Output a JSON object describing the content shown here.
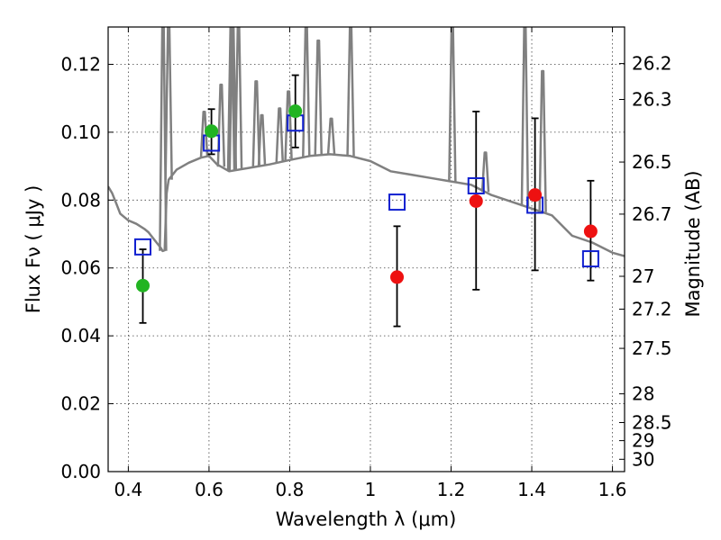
{
  "chart_data": {
    "type": "scatter",
    "title": "",
    "xlabel": "Wavelength  λ (μm)",
    "ylabel": "Flux  Fν  ( μJy )",
    "ylabel_right": "Magnitude (AB)",
    "xlim": [
      0.35,
      1.63
    ],
    "ylim": [
      0.0,
      0.131
    ],
    "grid": true,
    "x_ticks": [
      {
        "value": 0.4,
        "label": "0.4"
      },
      {
        "value": 0.6,
        "label": "0.6"
      },
      {
        "value": 0.8,
        "label": "0.8"
      },
      {
        "value": 1.0,
        "label": "1"
      },
      {
        "value": 1.2,
        "label": "1.2"
      },
      {
        "value": 1.4,
        "label": "1.4"
      },
      {
        "value": 1.6,
        "label": "1.6"
      }
    ],
    "y_ticks": [
      {
        "value": 0.0,
        "label": "0.00"
      },
      {
        "value": 0.02,
        "label": "0.02"
      },
      {
        "value": 0.04,
        "label": "0.04"
      },
      {
        "value": 0.06,
        "label": "0.06"
      },
      {
        "value": 0.08,
        "label": "0.08"
      },
      {
        "value": 0.1,
        "label": "0.10"
      },
      {
        "value": 0.12,
        "label": "0.12"
      }
    ],
    "right_ticks": [
      {
        "mag": 26.2,
        "label": "26.2"
      },
      {
        "mag": 26.3,
        "label": "26.3"
      },
      {
        "mag": 26.5,
        "label": "26.5"
      },
      {
        "mag": 26.7,
        "label": "26.7"
      },
      {
        "mag": 27.0,
        "label": "27"
      },
      {
        "mag": 27.2,
        "label": "27.2"
      },
      {
        "mag": 27.5,
        "label": "27.5"
      },
      {
        "mag": 28.0,
        "label": "28"
      },
      {
        "mag": 28.5,
        "label": "28.5"
      },
      {
        "mag": 29.0,
        "label": "29"
      },
      {
        "mag": 30.0,
        "label": "30"
      }
    ],
    "series": [
      {
        "kind": "points",
        "marker": "circle",
        "color": "#22b422",
        "x": [
          0.436,
          0.606,
          0.814
        ],
        "y": [
          0.0548,
          0.1003,
          0.1062
        ],
        "yerr_low": [
          0.0438,
          0.0935,
          0.0955
        ],
        "yerr_high": [
          0.0655,
          0.1068,
          0.1168
        ]
      },
      {
        "kind": "points",
        "marker": "circle",
        "color": "#ee1111",
        "x": [
          1.066,
          1.262,
          1.408,
          1.546
        ],
        "y": [
          0.0573,
          0.0797,
          0.0815,
          0.0708
        ],
        "yerr_low": [
          0.0428,
          0.0536,
          0.0593,
          0.0563
        ],
        "yerr_high": [
          0.0723,
          0.1061,
          0.1041,
          0.0857
        ]
      },
      {
        "kind": "model-points",
        "marker": "open-square",
        "color": "#1020d0",
        "x": [
          0.436,
          0.606,
          0.814,
          1.066,
          1.262,
          1.408,
          1.546
        ],
        "y": [
          0.0662,
          0.0968,
          0.1027,
          0.0794,
          0.0842,
          0.0785,
          0.0627
        ]
      },
      {
        "kind": "spectrum",
        "color": "#808080",
        "x": [
          0.35,
          0.36,
          0.37,
          0.38,
          0.4,
          0.42,
          0.44,
          0.45,
          0.46,
          0.47,
          0.48,
          0.485,
          0.49,
          0.495,
          0.5,
          0.52,
          0.55,
          0.58,
          0.6,
          0.62,
          0.65,
          0.7,
          0.75,
          0.8,
          0.85,
          0.9,
          0.95,
          1.0,
          1.05,
          1.1,
          1.15,
          1.2,
          1.25,
          1.3,
          1.35,
          1.4,
          1.45,
          1.5,
          1.55,
          1.6,
          1.63
        ],
        "y": [
          0.084,
          0.082,
          0.079,
          0.076,
          0.074,
          0.073,
          0.0715,
          0.0705,
          0.069,
          0.0675,
          0.066,
          0.065,
          0.0652,
          0.082,
          0.086,
          0.089,
          0.091,
          0.0925,
          0.093,
          0.0905,
          0.0885,
          0.0895,
          0.0905,
          0.0918,
          0.093,
          0.0935,
          0.093,
          0.0915,
          0.0885,
          0.0875,
          0.0865,
          0.0855,
          0.0845,
          0.0815,
          0.0795,
          0.0775,
          0.0755,
          0.0695,
          0.0675,
          0.0645,
          0.0635
        ],
        "lines": [
          {
            "x": 0.486,
            "ytop": 0.131
          },
          {
            "x": 0.5,
            "ytop": 0.131
          },
          {
            "x": 0.588,
            "ytop": 0.106
          },
          {
            "x": 0.63,
            "ytop": 0.114
          },
          {
            "x": 0.655,
            "ytop": 0.131
          },
          {
            "x": 0.659,
            "ytop": 0.131
          },
          {
            "x": 0.673,
            "ytop": 0.131
          },
          {
            "x": 0.717,
            "ytop": 0.115
          },
          {
            "x": 0.731,
            "ytop": 0.105
          },
          {
            "x": 0.775,
            "ytop": 0.107
          },
          {
            "x": 0.797,
            "ytop": 0.112
          },
          {
            "x": 0.841,
            "ytop": 0.131
          },
          {
            "x": 0.871,
            "ytop": 0.127
          },
          {
            "x": 0.903,
            "ytop": 0.104
          },
          {
            "x": 0.951,
            "ytop": 0.131
          },
          {
            "x": 1.203,
            "ytop": 0.131
          },
          {
            "x": 1.285,
            "ytop": 0.094
          },
          {
            "x": 1.383,
            "ytop": 0.131
          },
          {
            "x": 1.427,
            "ytop": 0.118
          }
        ]
      }
    ]
  }
}
